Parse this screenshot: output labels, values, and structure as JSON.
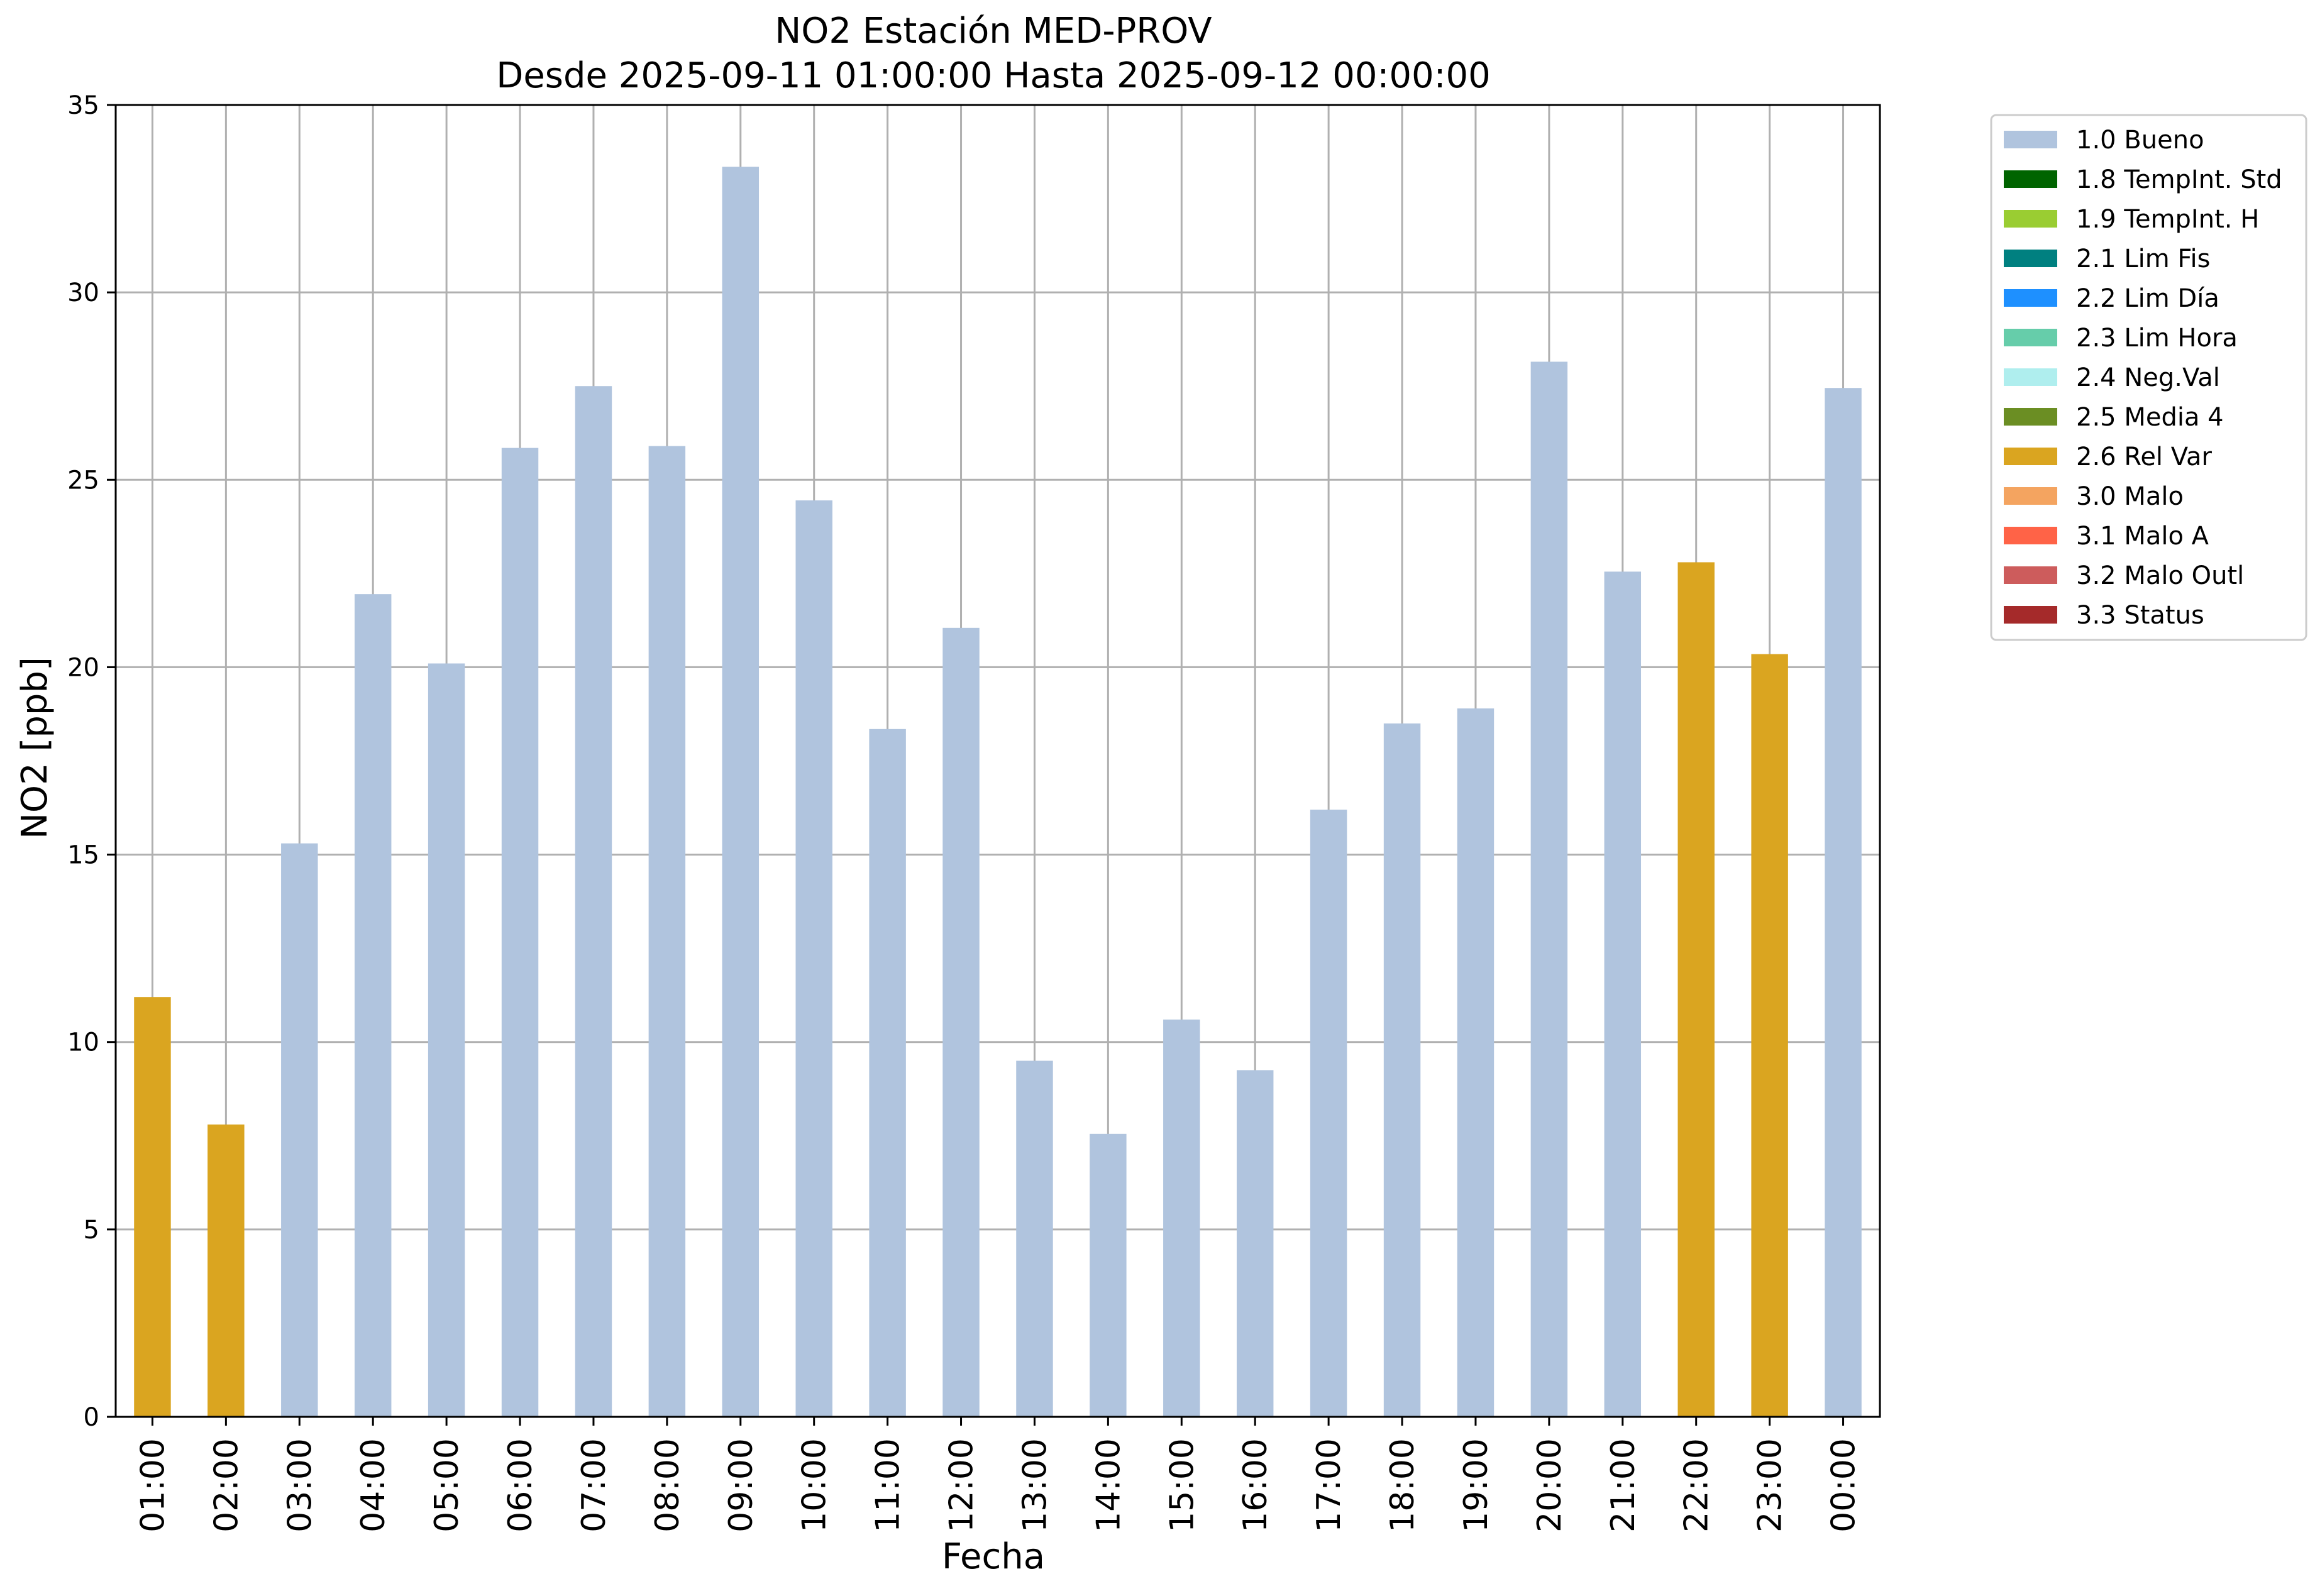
{
  "chart_data": {
    "type": "bar",
    "title": "NO2 Estación MED-PROV",
    "subtitle": "Desde 2025-09-11 01:00:00 Hasta 2025-09-12 00:00:00",
    "xlabel": "Fecha",
    "ylabel": "NO2 [ppb]",
    "ylim": [
      0,
      35
    ],
    "yticks": [
      0,
      5,
      10,
      15,
      20,
      25,
      30,
      35
    ],
    "grid": true,
    "legend_position": "outside-top-right",
    "categories": [
      "01:00",
      "02:00",
      "03:00",
      "04:00",
      "05:00",
      "06:00",
      "07:00",
      "08:00",
      "09:00",
      "10:00",
      "11:00",
      "12:00",
      "13:00",
      "14:00",
      "15:00",
      "16:00",
      "17:00",
      "18:00",
      "19:00",
      "20:00",
      "21:00",
      "22:00",
      "23:00",
      "00:00"
    ],
    "values": [
      11.2,
      7.8,
      15.3,
      21.95,
      20.1,
      25.85,
      27.5,
      25.9,
      33.35,
      24.45,
      18.35,
      21.05,
      9.5,
      7.55,
      10.6,
      9.25,
      16.2,
      18.5,
      18.9,
      28.15,
      22.55,
      22.8,
      20.35,
      27.45
    ],
    "flags": [
      "2.6",
      "2.6",
      "1.0",
      "1.0",
      "1.0",
      "1.0",
      "1.0",
      "1.0",
      "1.0",
      "1.0",
      "1.0",
      "1.0",
      "1.0",
      "1.0",
      "1.0",
      "1.0",
      "1.0",
      "1.0",
      "1.0",
      "1.0",
      "1.0",
      "2.6",
      "2.6",
      "1.0"
    ],
    "legend": [
      {
        "code": "1.0",
        "label": "1.0 Bueno",
        "color": "#b0c4de"
      },
      {
        "code": "1.8",
        "label": "1.8 TempInt. Std",
        "color": "#006400"
      },
      {
        "code": "1.9",
        "label": "1.9 TempInt. H",
        "color": "#9acd32"
      },
      {
        "code": "2.1",
        "label": "2.1 Lim Fis",
        "color": "#008080"
      },
      {
        "code": "2.2",
        "label": "2.2 Lim Día",
        "color": "#1e90ff"
      },
      {
        "code": "2.3",
        "label": "2.3 Lim Hora",
        "color": "#66cdaa"
      },
      {
        "code": "2.4",
        "label": "2.4 Neg.Val",
        "color": "#afeeee"
      },
      {
        "code": "2.5",
        "label": "2.5 Media 4",
        "color": "#6b8e23"
      },
      {
        "code": "2.6",
        "label": "2.6 Rel Var",
        "color": "#daa520"
      },
      {
        "code": "3.0",
        "label": "3.0 Malo",
        "color": "#f4a460"
      },
      {
        "code": "3.1",
        "label": "3.1 Malo A",
        "color": "#ff6347"
      },
      {
        "code": "3.2",
        "label": "3.2 Malo Outl",
        "color": "#cd5c5c"
      },
      {
        "code": "3.3",
        "label": "3.3 Status",
        "color": "#a52a2a"
      }
    ]
  }
}
